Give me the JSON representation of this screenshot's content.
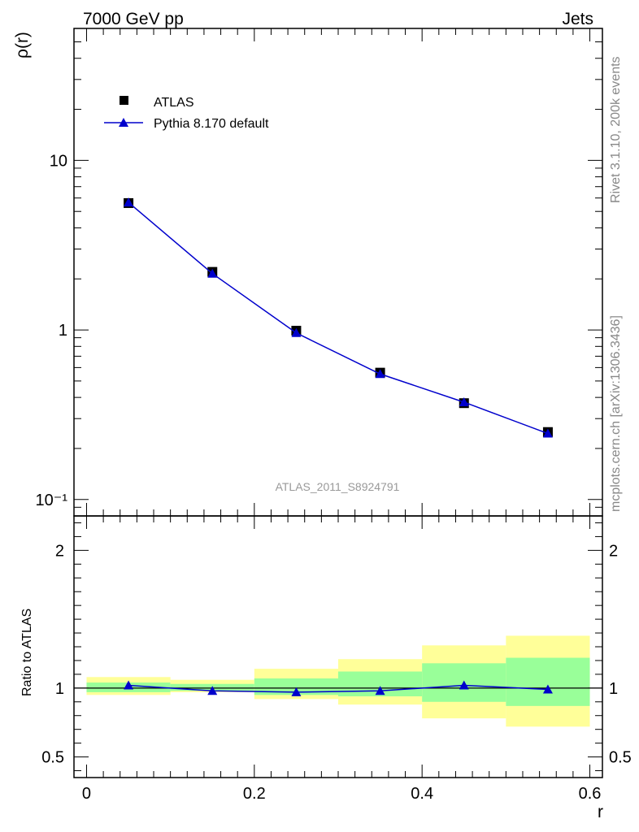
{
  "header": {
    "left": "7000 GeV pp",
    "right": "Jets"
  },
  "side_labels": {
    "top": "Rivet 3.1.10,  200k events",
    "bottom": "mcplots.cern.ch [arXiv:1306.3436]"
  },
  "watermark": "ATLAS_2011_S8924791",
  "legend": {
    "data_label": "ATLAS",
    "mc_label": "Pythia 8.170 default"
  },
  "colors": {
    "data": "#000000",
    "mc": "#0000cc",
    "band_inner": "#99ff99",
    "band_outer": "#ffff99",
    "watermark": "#999999"
  },
  "chart_data": [
    {
      "type": "line",
      "ylabel": "ρ(r)",
      "yscale": "log",
      "ylim": [
        0.08,
        60
      ],
      "xlim": [
        -0.015,
        0.615
      ],
      "y_ticks": [
        {
          "value": 10,
          "label": "10"
        },
        {
          "value": 1,
          "label": "1"
        },
        {
          "value": 0.1,
          "label": "10⁻¹"
        }
      ],
      "series": [
        {
          "name": "ATLAS",
          "marker": "square",
          "x": [
            0.05,
            0.15,
            0.25,
            0.35,
            0.45,
            0.55
          ],
          "y": [
            5.6,
            2.2,
            0.99,
            0.56,
            0.37,
            0.25
          ]
        },
        {
          "name": "Pythia 8.170 default",
          "marker": "triangle",
          "x": [
            0.05,
            0.15,
            0.25,
            0.35,
            0.45,
            0.55
          ],
          "y": [
            5.65,
            2.15,
            0.96,
            0.55,
            0.375,
            0.245
          ]
        }
      ]
    },
    {
      "type": "line",
      "ylabel": "Ratio to ATLAS",
      "xlabel": "r",
      "ylim": [
        0.35,
        2.25
      ],
      "xlim": [
        -0.015,
        0.615
      ],
      "y_ticks": [
        {
          "value": 2,
          "label": "2"
        },
        {
          "value": 1,
          "label": "1"
        },
        {
          "value": 0.5,
          "label": "0.5"
        }
      ],
      "x_ticks": [
        {
          "value": 0,
          "label": "0"
        },
        {
          "value": 0.2,
          "label": "0.2"
        },
        {
          "value": 0.4,
          "label": "0.4"
        },
        {
          "value": 0.6,
          "label": "0.6"
        }
      ],
      "bins": [
        [
          0.0,
          0.1
        ],
        [
          0.1,
          0.2
        ],
        [
          0.2,
          0.3
        ],
        [
          0.3,
          0.4
        ],
        [
          0.4,
          0.5
        ],
        [
          0.5,
          0.6
        ]
      ],
      "band_inner": [
        [
          0.97,
          1.04
        ],
        [
          0.98,
          1.03
        ],
        [
          0.95,
          1.07
        ],
        [
          0.94,
          1.12
        ],
        [
          0.9,
          1.18
        ],
        [
          0.87,
          1.22
        ]
      ],
      "band_outer": [
        [
          0.95,
          1.08
        ],
        [
          0.97,
          1.06
        ],
        [
          0.92,
          1.14
        ],
        [
          0.88,
          1.21
        ],
        [
          0.78,
          1.31
        ],
        [
          0.72,
          1.38
        ]
      ],
      "series": [
        {
          "name": "Pythia 8.170 default",
          "marker": "triangle",
          "x": [
            0.05,
            0.15,
            0.25,
            0.35,
            0.45,
            0.55
          ],
          "y": [
            1.02,
            0.98,
            0.97,
            0.98,
            1.02,
            0.99
          ]
        }
      ]
    }
  ]
}
